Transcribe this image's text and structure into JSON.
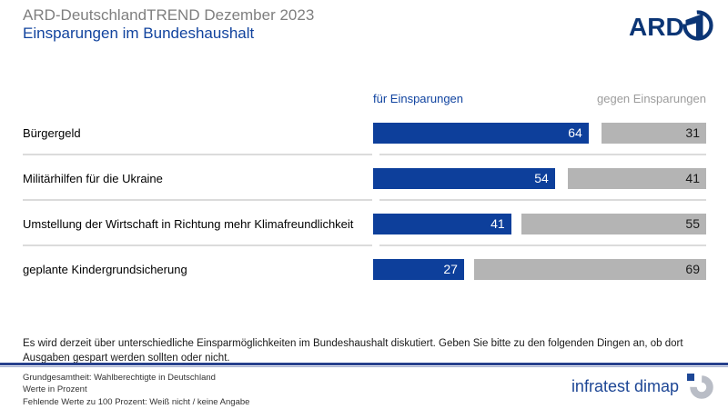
{
  "header": {
    "title": "ARD-DeutschlandTREND Dezember 2023",
    "subtitle": "Einsparungen im Bundeshaushalt"
  },
  "ard_logo": {
    "text": "ARD"
  },
  "chart_data": {
    "type": "bar",
    "orientation": "horizontal",
    "unit": "percent",
    "xlim": [
      0,
      100
    ],
    "categories": [
      "Bürgergeld",
      "Militärhilfen für die Ukraine",
      "Umstellung der Wirtschaft in Richtung mehr Klimafreundlichkeit",
      "geplante Kindergrundsicherung"
    ],
    "series": [
      {
        "name": "für Einsparungen",
        "color": "#0d3f9b",
        "values": [
          64,
          54,
          41,
          27
        ]
      },
      {
        "name": "gegen Einsparungen",
        "color": "#b4b4b4",
        "values": [
          31,
          41,
          55,
          69
        ]
      }
    ],
    "legend_position": "top",
    "grid": false
  },
  "question": "Es wird derzeit über unterschiedliche Einsparmöglichkeiten im Bundeshaushalt diskutiert. Geben Sie bitte zu den folgenden Dingen an, ob dort Ausgaben gespart werden sollten oder nicht.",
  "footnotes": [
    "Grundgesamtheit: Wahlberechtigte in Deutschland",
    "Werte in Prozent",
    "Fehlende Werte zu 100 Prozent: Weiß nicht / keine Angabe"
  ],
  "brand": {
    "name": "infratest dimap"
  },
  "colors": {
    "bar_for": "#0d3f9b",
    "bar_against": "#b4b4b4",
    "accent_blue": "#11439e",
    "title_gray": "#7f7f7f",
    "navy_rule": "#27418d"
  }
}
